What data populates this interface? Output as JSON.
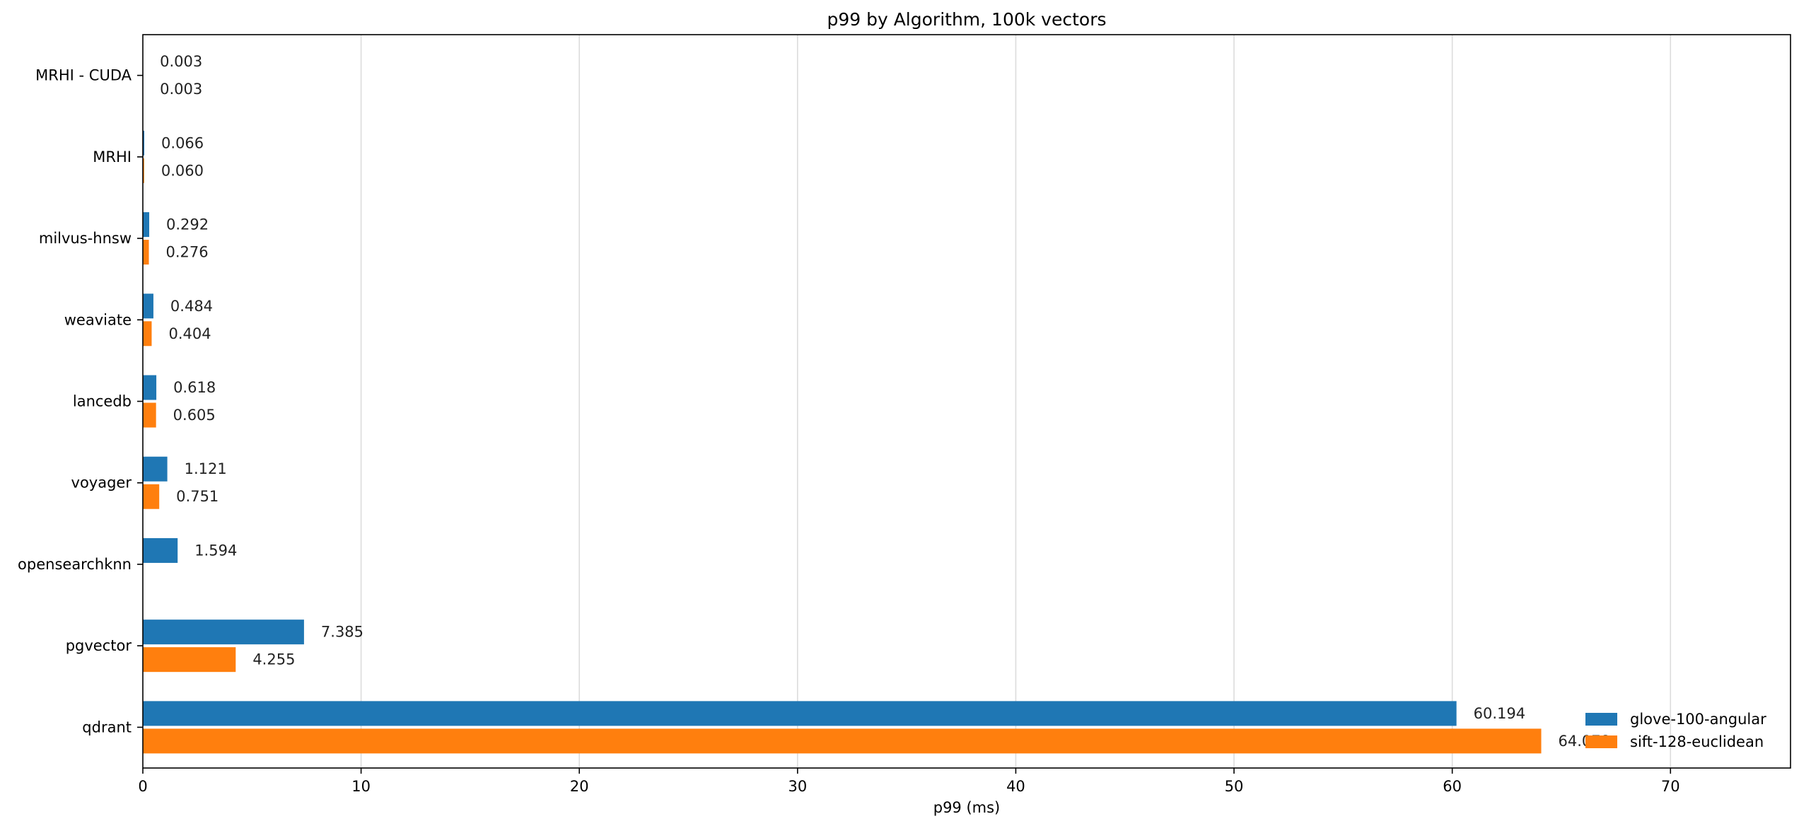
{
  "chart_data": {
    "type": "bar",
    "orientation": "horizontal",
    "title": "p99 by Algorithm, 100k vectors",
    "xlabel": "p99 (ms)",
    "ylabel": "",
    "xlim": [
      0,
      75.5
    ],
    "xticks": [
      0,
      10,
      20,
      30,
      40,
      50,
      60,
      70
    ],
    "grid": "x",
    "legend_position": "lower-right",
    "categories": [
      "MRHI - CUDA",
      "MRHI",
      "milvus-hnsw",
      "weaviate",
      "lancedb",
      "voyager",
      "opensearchknn",
      "pgvector",
      "qdrant"
    ],
    "series": [
      {
        "name": "glove-100-angular",
        "color": "#1f77b4",
        "values": [
          0.003,
          0.066,
          0.292,
          0.484,
          0.618,
          1.121,
          1.594,
          7.385,
          60.194
        ],
        "labels": [
          "0.003",
          "0.066",
          "0.292",
          "0.484",
          "0.618",
          "1.121",
          "1.594",
          "7.385",
          "60.194"
        ]
      },
      {
        "name": "sift-128-euclidean",
        "color": "#ff7f0e",
        "values": [
          0.003,
          0.06,
          0.276,
          0.404,
          0.605,
          0.751,
          null,
          4.255,
          64.078
        ],
        "labels": [
          "0.003",
          "0.060",
          "0.276",
          "0.404",
          "0.605",
          "0.751",
          null,
          "4.255",
          "64.078"
        ]
      }
    ]
  }
}
